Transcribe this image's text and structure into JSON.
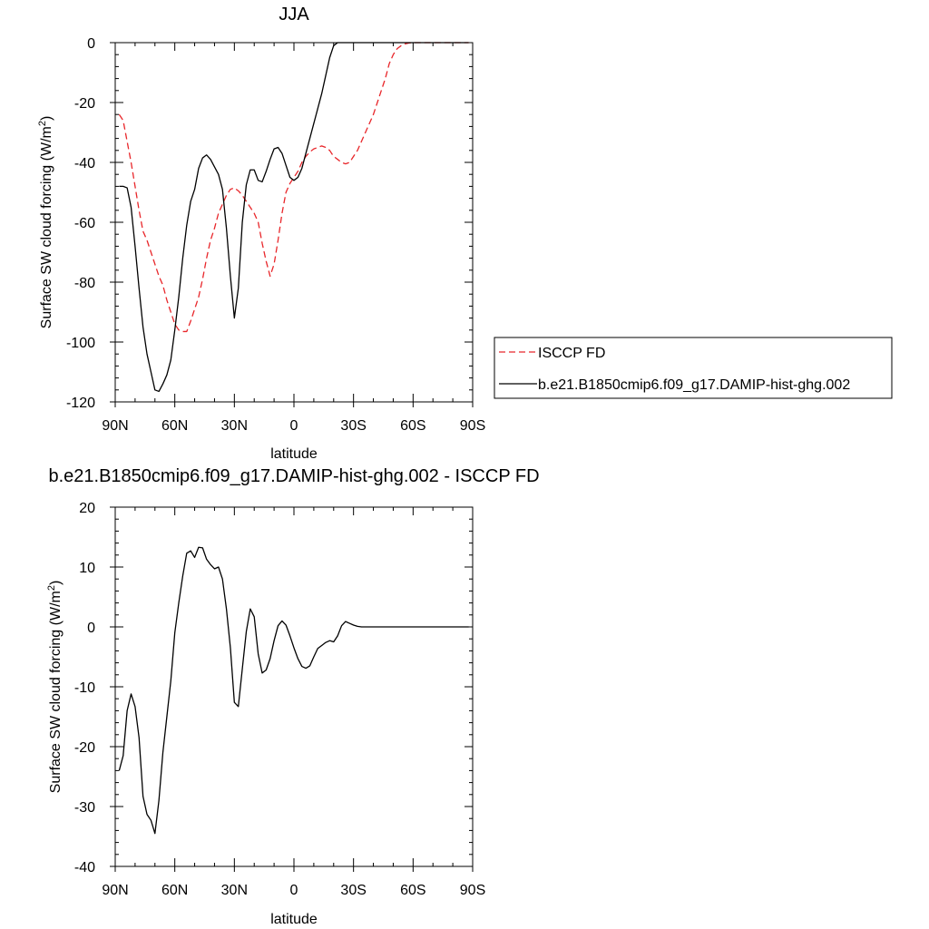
{
  "chart_data": [
    {
      "type": "line",
      "title": "JJA",
      "xlabel": "latitude",
      "ylabel_main": "Surface SW cloud forcing (W/m",
      "ylabel_sup": "2",
      "ylabel_close": ")",
      "xlim": [
        90,
        -90
      ],
      "ylim": [
        -120,
        0
      ],
      "xticks": [
        90,
        60,
        30,
        0,
        -30,
        -60,
        -90
      ],
      "xtick_labels": [
        "90N",
        "60N",
        "30N",
        "0",
        "30S",
        "60S",
        "90S"
      ],
      "yticks": [
        0,
        -20,
        -40,
        -60,
        -80,
        -100,
        -120
      ],
      "ytick_labels": [
        "0",
        "-20",
        "-40",
        "-60",
        "-80",
        "-100",
        "-120"
      ],
      "legend": "right",
      "series": [
        {
          "name": "ISCCP FD",
          "color": "#e8262a",
          "dash": "dashed",
          "x": [
            88,
            86,
            84,
            82,
            80,
            78,
            76,
            74,
            72,
            70,
            68,
            66,
            64,
            62,
            60,
            58,
            56,
            54,
            52,
            50,
            48,
            46,
            44,
            42,
            40,
            38,
            36,
            34,
            32,
            30,
            28,
            26,
            24,
            22,
            20,
            18,
            16,
            14,
            12,
            10,
            8,
            6,
            4,
            2,
            0,
            -2,
            -4,
            -6,
            -8,
            -10,
            -12,
            -14,
            -16,
            -18,
            -20,
            -22,
            -24,
            -26,
            -28,
            -30,
            -32,
            -34,
            -36,
            -38,
            -40,
            -42,
            -44,
            -46,
            -48,
            -50,
            -52,
            -54,
            -56,
            -58,
            -60,
            -62,
            -64,
            -66,
            -68,
            -70,
            -72,
            -74,
            -76,
            -78,
            -80,
            -82,
            -84,
            -86,
            -88
          ],
          "y": [
            -24,
            -26,
            -33,
            -40,
            -48,
            -56,
            -63,
            -66,
            -70,
            -74,
            -78,
            -81,
            -86,
            -90,
            -94,
            -96,
            -96.5,
            -96.5,
            -93,
            -89,
            -85,
            -79,
            -72,
            -66,
            -62,
            -57,
            -54,
            -51,
            -49,
            -48.5,
            -49.5,
            -51,
            -53,
            -55,
            -57,
            -60,
            -67,
            -73,
            -78,
            -74,
            -66,
            -57,
            -50,
            -47,
            -45,
            -43,
            -40,
            -38,
            -36.5,
            -35.5,
            -35,
            -34.5,
            -35,
            -36,
            -38,
            -39,
            -40,
            -40.5,
            -40,
            -38,
            -36,
            -33,
            -30,
            -27,
            -24,
            -20,
            -16,
            -12,
            -7,
            -4,
            -2,
            -1,
            -0.4,
            -0.1,
            0,
            0,
            0,
            0,
            0,
            0,
            0,
            0,
            0,
            0,
            0,
            0,
            0,
            0,
            0
          ]
        },
        {
          "name": "b.e21.B1850cmip6.f09_g17.DAMIP-hist-ghg.002",
          "color": "#000000",
          "dash": "solid",
          "x": [
            88,
            86,
            84,
            82,
            80,
            78,
            76,
            74,
            72,
            70,
            68,
            66,
            64,
            62,
            60,
            58,
            56,
            54,
            52,
            50,
            48,
            46,
            44,
            42,
            40,
            38,
            36,
            34,
            32,
            30,
            28,
            26,
            24,
            22,
            20,
            18,
            16,
            14,
            12,
            10,
            8,
            6,
            4,
            2,
            0,
            -2,
            -4,
            -6,
            -8,
            -10,
            -12,
            -14,
            -16,
            -18,
            -20,
            -22,
            -24,
            -26,
            -28,
            -30,
            -32,
            -34,
            -36,
            -38,
            -40,
            -42,
            -44,
            -46,
            -48,
            -50,
            -52,
            -54,
            -56,
            -58,
            -60,
            -62,
            -64,
            -66,
            -68,
            -70,
            -72,
            -74,
            -76,
            -78,
            -80,
            -82,
            -84,
            -86,
            -88
          ],
          "y": [
            -48,
            -48,
            -48.5,
            -55,
            -68,
            -82,
            -95,
            -104,
            -110,
            -116,
            -116.5,
            -114,
            -111,
            -106,
            -96,
            -85,
            -72,
            -61,
            -53,
            -49,
            -42,
            -38.5,
            -37.5,
            -39,
            -41.5,
            -44,
            -49,
            -62,
            -78,
            -92,
            -82,
            -60,
            -47.5,
            -42.5,
            -42.5,
            -46,
            -46.5,
            -43,
            -39,
            -35.5,
            -35,
            -37,
            -41,
            -45,
            -46,
            -45,
            -42,
            -37,
            -32,
            -27,
            -22,
            -17,
            -11,
            -5,
            -1,
            0,
            0,
            0,
            0,
            0,
            0,
            0,
            0,
            0,
            0,
            0,
            0,
            0,
            0,
            0,
            0,
            0,
            0,
            0,
            0,
            0,
            0,
            0,
            0,
            0,
            0,
            0,
            0,
            0,
            0,
            0,
            0,
            0,
            0
          ]
        }
      ]
    },
    {
      "type": "line",
      "title": "b.e21.B1850cmip6.f09_g17.DAMIP-hist-ghg.002 - ISCCP FD",
      "xlabel": "latitude",
      "ylabel_main": "Surface SW cloud forcing (W/m",
      "ylabel_sup": "2",
      "ylabel_close": ")",
      "xlim": [
        90,
        -90
      ],
      "ylim": [
        -40,
        20
      ],
      "xticks": [
        90,
        60,
        30,
        0,
        -30,
        -60,
        -90
      ],
      "xtick_labels": [
        "90N",
        "60N",
        "30N",
        "0",
        "30S",
        "60S",
        "90S"
      ],
      "yticks": [
        20,
        10,
        0,
        -10,
        -20,
        -30,
        -40
      ],
      "ytick_labels": [
        "20",
        "10",
        "0",
        "-10",
        "-20",
        "-30",
        "-40"
      ],
      "series": [
        {
          "color": "#000000",
          "dash": "solid",
          "x": [
            88,
            86,
            84,
            82,
            80,
            78,
            76,
            74,
            72,
            70,
            68,
            66,
            64,
            62,
            60,
            58,
            56,
            54,
            52,
            50,
            48,
            46,
            44,
            42,
            40,
            38,
            36,
            34,
            32,
            30,
            28,
            26,
            24,
            22,
            20,
            18,
            16,
            14,
            12,
            10,
            8,
            6,
            4,
            2,
            0,
            -2,
            -4,
            -6,
            -8,
            -10,
            -12,
            -14,
            -16,
            -18,
            -20,
            -22,
            -24,
            -26,
            -28,
            -30,
            -32,
            -34,
            -36,
            -38,
            -40,
            -42,
            -44,
            -46,
            -48,
            -50,
            -52,
            -54,
            -56,
            -58,
            -60,
            -62,
            -64,
            -66,
            -68,
            -70,
            -72,
            -74,
            -76,
            -78,
            -80,
            -82,
            -84,
            -86,
            -88
          ],
          "y": [
            -24,
            -21.5,
            -14,
            -11.2,
            -13.3,
            -18.5,
            -28.3,
            -31.3,
            -32.3,
            -34.5,
            -29,
            -21,
            -15,
            -9,
            -1,
            4,
            8.5,
            12.3,
            12.7,
            11.6,
            13.3,
            13.2,
            11.3,
            10.4,
            9.7,
            10,
            8,
            3,
            -3.5,
            -12.6,
            -13.3,
            -7,
            -0.8,
            3,
            1.7,
            -4.5,
            -7.7,
            -7.2,
            -5.3,
            -2.3,
            0.2,
            1,
            0.3,
            -1.5,
            -3.5,
            -5.3,
            -6.6,
            -6.9,
            -6.5,
            -5,
            -3.6,
            -3.1,
            -2.6,
            -2.3,
            -2.5,
            -1.5,
            0.2,
            0.9,
            0.6,
            0.3,
            0.1,
            0,
            0,
            0,
            0,
            0,
            0,
            0,
            0,
            0,
            0,
            0,
            0,
            0,
            0,
            0,
            0,
            0,
            0,
            0,
            0,
            0,
            0,
            0,
            0,
            0,
            0,
            0,
            0
          ]
        }
      ]
    }
  ]
}
